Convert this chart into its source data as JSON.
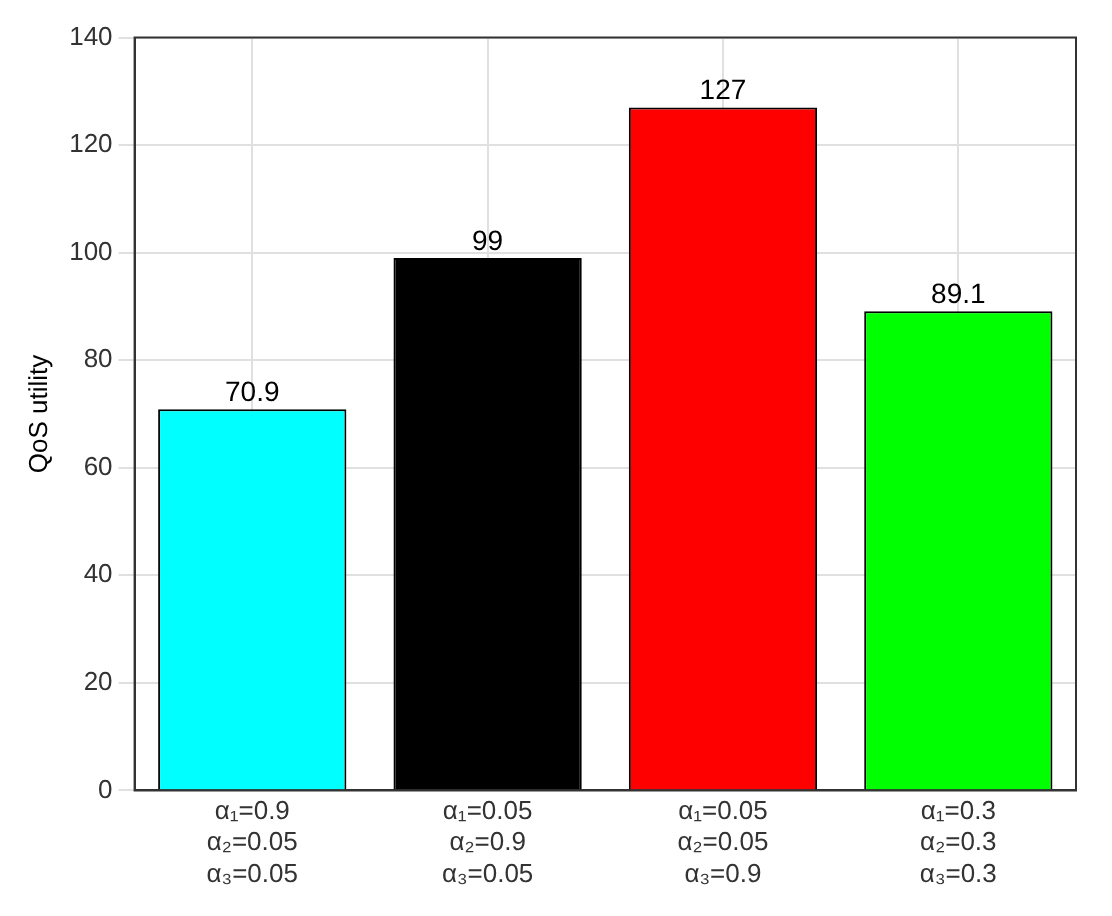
{
  "chart_data": {
    "type": "bar",
    "ylabel": "QoS utility",
    "categories": [
      "α₁=0.9\nα₂=0.05\nα₃=0.05",
      "α₁=0.05\nα₂=0.9\nα₃=0.05",
      "α₁=0.05\nα₂=0.05\nα₃=0.9",
      "α₁=0.3\nα₂=0.3\nα₃=0.3"
    ],
    "values": [
      70.9,
      99,
      127,
      89.1
    ],
    "colors": [
      "#00ffff",
      "#000000",
      "#ff0000",
      "#00ff00"
    ],
    "ylim": [
      0,
      140
    ],
    "yticks": [
      0,
      20,
      40,
      60,
      80,
      100,
      120,
      140
    ],
    "grid": true,
    "data_labels": true
  }
}
